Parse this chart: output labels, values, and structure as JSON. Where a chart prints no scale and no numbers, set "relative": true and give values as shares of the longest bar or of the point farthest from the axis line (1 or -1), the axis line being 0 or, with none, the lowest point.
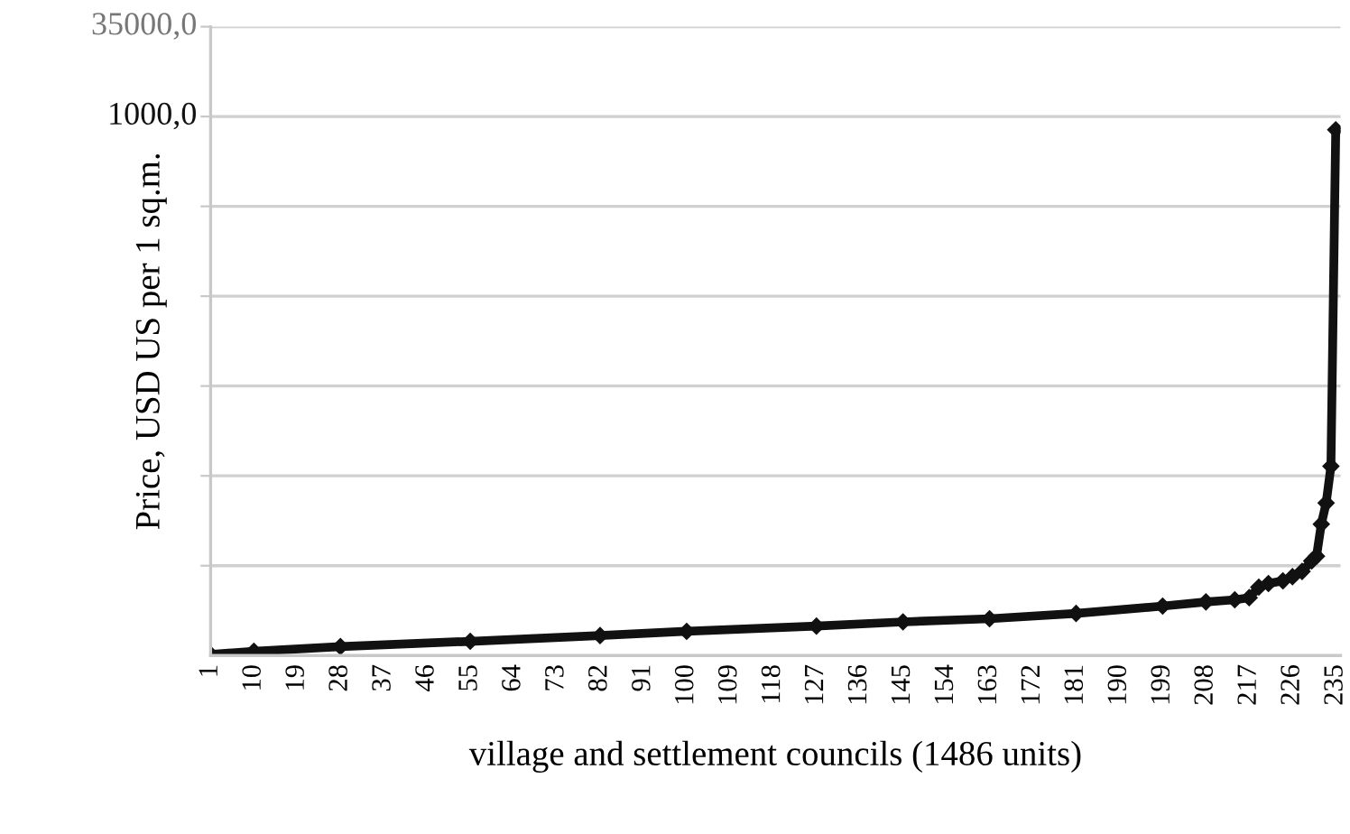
{
  "chart_data": {
    "type": "line",
    "relative": true,
    "xlabel": "village and settlement councils (1486 units)",
    "ylabel": "Price, USD US per 1 sq.m.",
    "x": [
      1,
      10,
      28,
      55,
      82,
      100,
      127,
      145,
      163,
      181,
      199,
      208,
      214,
      217,
      219,
      221,
      224,
      226,
      228,
      230,
      231,
      232,
      233,
      234,
      235
    ],
    "series": [
      {
        "color": "#111111",
        "values": [
          0.002,
          0.008,
          0.017,
          0.027,
          0.038,
          0.046,
          0.056,
          0.064,
          0.07,
          0.08,
          0.094,
          0.102,
          0.106,
          0.11,
          0.13,
          0.137,
          0.142,
          0.15,
          0.16,
          0.18,
          0.189,
          0.25,
          0.29,
          0.36,
          1.0
        ]
      }
    ],
    "xlim": [
      1,
      236
    ],
    "xticks": [
      1,
      10,
      19,
      28,
      37,
      46,
      55,
      64,
      73,
      82,
      91,
      100,
      109,
      118,
      127,
      136,
      145,
      154,
      163,
      172,
      181,
      190,
      199,
      208,
      217,
      226,
      235
    ],
    "annotations": [
      "35000,0",
      "1000,0"
    ],
    "grid": "y",
    "marker": "diamond",
    "line_style": "solid",
    "legend": false
  }
}
